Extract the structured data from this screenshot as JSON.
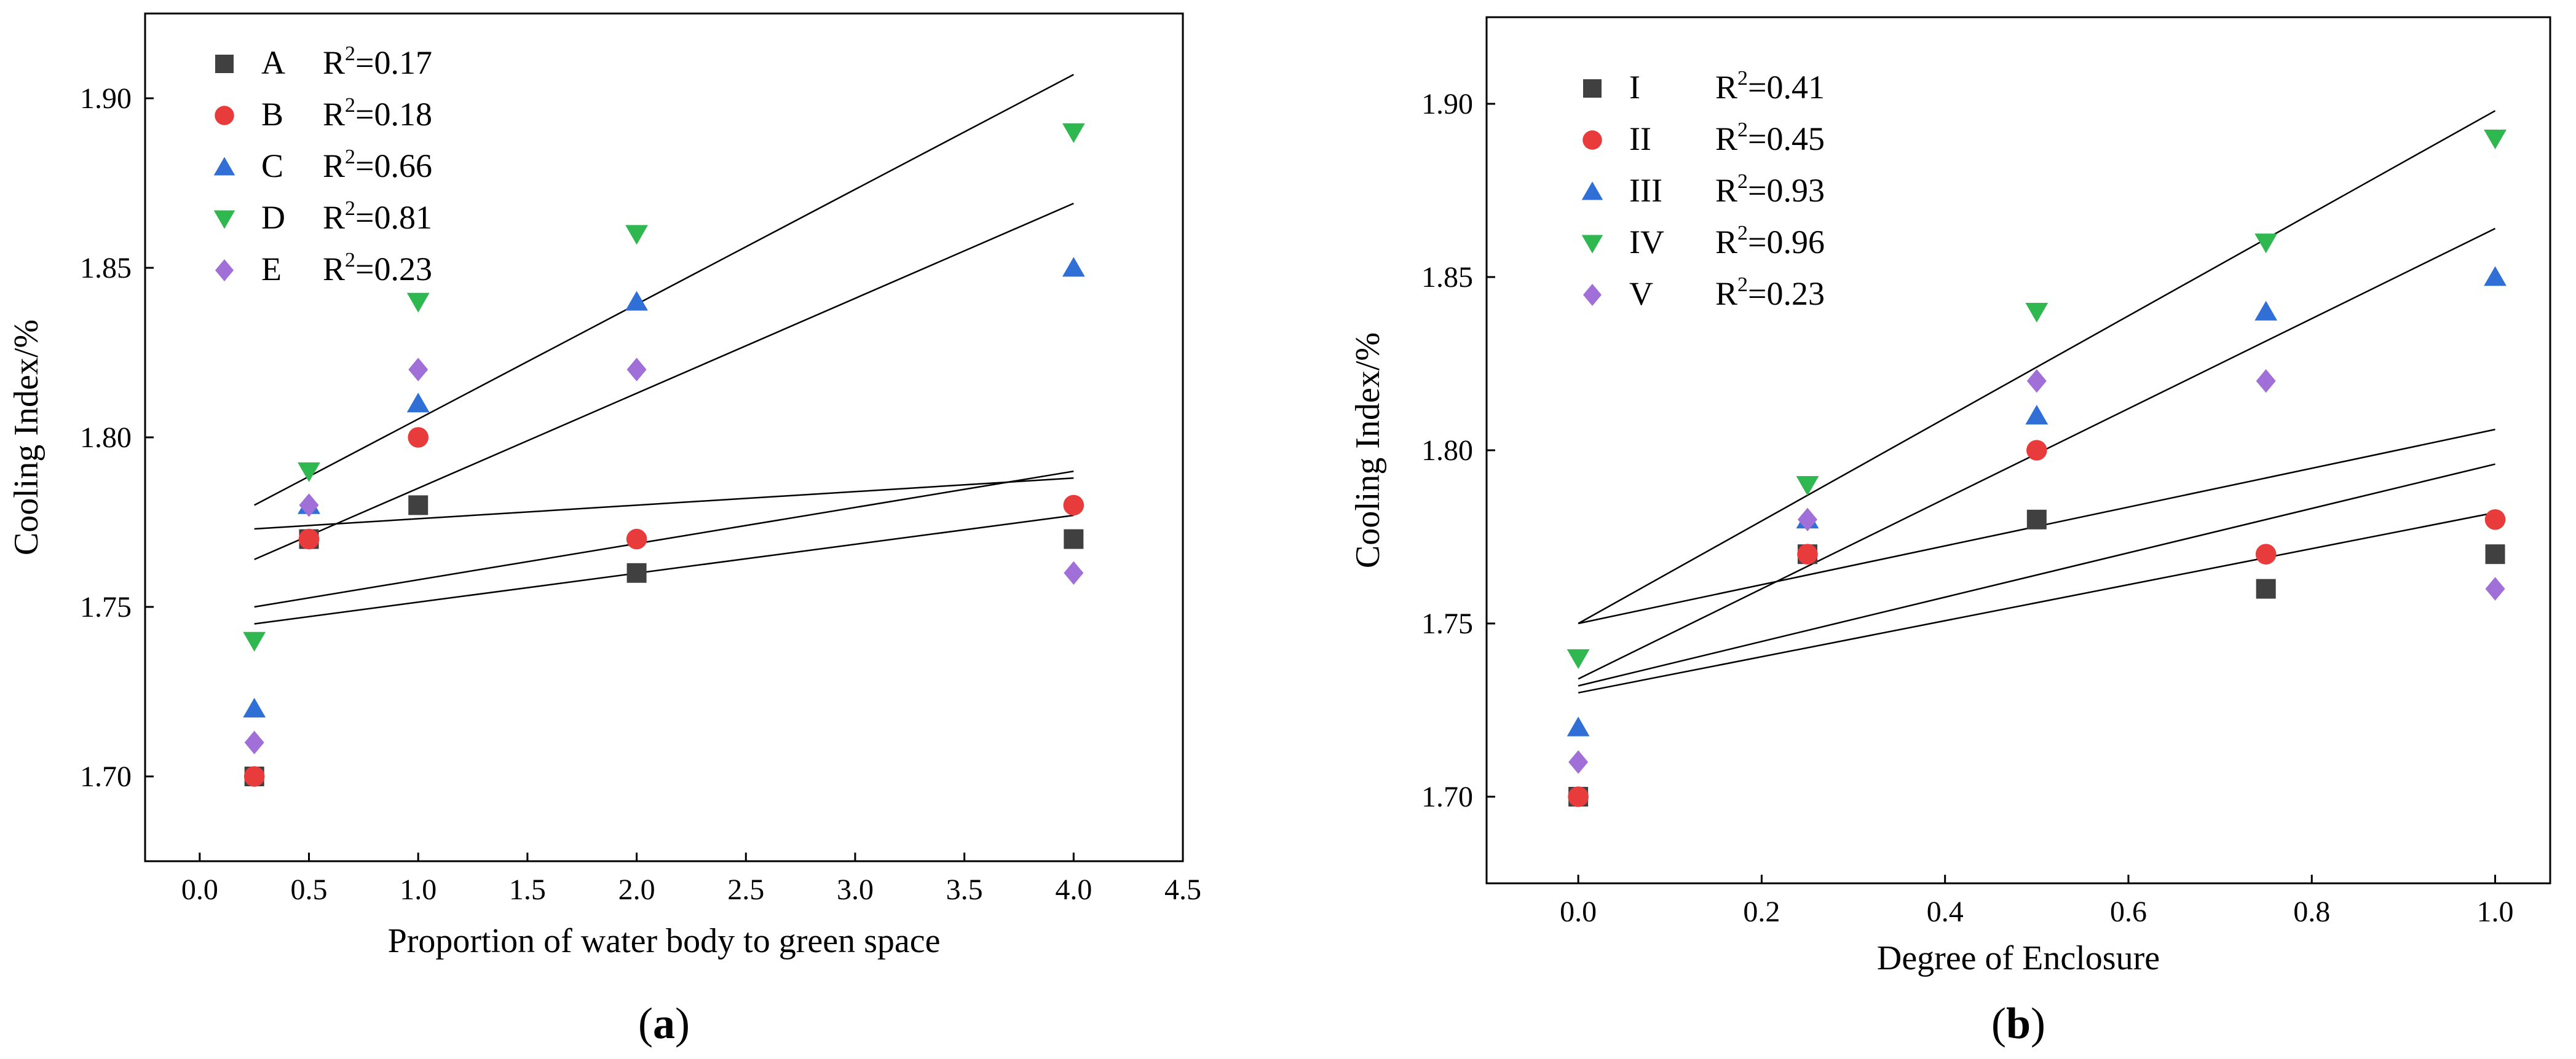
{
  "chart_data": [
    {
      "id": "a",
      "type": "scatter",
      "caption": "a",
      "xlabel": "Proportion of water body to green space",
      "ylabel": "Cooling Index/%",
      "xlim": [
        -0.25,
        4.5
      ],
      "ylim": [
        1.675,
        1.925
      ],
      "x_ticks": [
        0.0,
        0.5,
        1.0,
        1.5,
        2.0,
        2.5,
        3.0,
        3.5,
        4.0,
        4.5
      ],
      "x_tick_labels": [
        "0.0",
        "0.5",
        "1.0",
        "1.5",
        "2.0",
        "2.5",
        "3.0",
        "3.5",
        "4.0",
        "4.5"
      ],
      "y_ticks": [
        1.7,
        1.75,
        1.8,
        1.85,
        1.9
      ],
      "y_tick_labels": [
        "1.70",
        "1.75",
        "1.80",
        "1.85",
        "1.90"
      ],
      "series": [
        {
          "name": "A",
          "r2_label": "=0.17",
          "marker": "square",
          "color": "#404040",
          "x": [
            0.25,
            0.5,
            1.0,
            2.0,
            4.0
          ],
          "y": [
            1.7,
            1.77,
            1.78,
            1.76,
            1.77
          ],
          "fit": {
            "x": [
              0.25,
              4.0
            ],
            "y": [
              1.773,
              1.788
            ]
          }
        },
        {
          "name": "B",
          "r2_label": "=0.18",
          "marker": "circle",
          "color": "#e83c3c",
          "x": [
            0.25,
            0.5,
            1.0,
            2.0,
            4.0
          ],
          "y": [
            1.7,
            1.77,
            1.8,
            1.77,
            1.78
          ],
          "fit": {
            "x": [
              0.25,
              4.0
            ],
            "y": [
              1.745,
              1.777
            ]
          }
        },
        {
          "name": "C",
          "r2_label": "=0.66",
          "marker": "triangle-up",
          "color": "#2f6fd6",
          "x": [
            0.25,
            0.5,
            1.0,
            2.0,
            4.0
          ],
          "y": [
            1.72,
            1.78,
            1.81,
            1.84,
            1.85
          ],
          "fit": {
            "x": [
              0.25,
              4.0
            ],
            "y": [
              1.764,
              1.869
            ]
          }
        },
        {
          "name": "D",
          "r2_label": "=0.81",
          "marker": "triangle-down",
          "color": "#2fb84f",
          "x": [
            0.25,
            0.5,
            1.0,
            2.0,
            4.0
          ],
          "y": [
            1.74,
            1.79,
            1.84,
            1.86,
            1.89
          ],
          "fit": {
            "x": [
              0.25,
              4.0
            ],
            "y": [
              1.78,
              1.907
            ]
          }
        },
        {
          "name": "E",
          "r2_label": "=0.23",
          "marker": "diamond",
          "color": "#a070d8",
          "x": [
            0.25,
            0.5,
            1.0,
            2.0,
            4.0
          ],
          "y": [
            1.71,
            1.78,
            1.82,
            1.82,
            1.76
          ],
          "fit": {
            "x": [
              0.25,
              4.0
            ],
            "y": [
              1.75,
              1.79
            ]
          }
        }
      ]
    },
    {
      "id": "b",
      "type": "scatter",
      "caption": "b",
      "xlabel": "Degree of Enclosure",
      "ylabel": "Cooling Index/%",
      "xlim": [
        -0.1,
        1.06
      ],
      "ylim": [
        1.675,
        1.925
      ],
      "x_ticks": [
        0.0,
        0.2,
        0.4,
        0.6,
        0.8,
        1.0
      ],
      "x_tick_labels": [
        "0.0",
        "0.2",
        "0.4",
        "0.6",
        "0.8",
        "1.0"
      ],
      "y_ticks": [
        1.7,
        1.75,
        1.8,
        1.85,
        1.9
      ],
      "y_tick_labels": [
        "1.70",
        "1.75",
        "1.80",
        "1.85",
        "1.90"
      ],
      "series": [
        {
          "name": "I",
          "r2_label": "=0.41",
          "marker": "square",
          "color": "#404040",
          "x": [
            0.0,
            0.25,
            0.5,
            0.75,
            1.0
          ],
          "y": [
            1.7,
            1.77,
            1.78,
            1.76,
            1.77
          ],
          "fit": {
            "x": [
              0.0,
              1.0
            ],
            "y": [
              1.73,
              1.782
            ]
          }
        },
        {
          "name": "II",
          "r2_label": "=0.45",
          "marker": "circle",
          "color": "#e83c3c",
          "x": [
            0.0,
            0.25,
            0.5,
            0.75,
            1.0
          ],
          "y": [
            1.7,
            1.77,
            1.8,
            1.77,
            1.78
          ],
          "fit": {
            "x": [
              0.0,
              1.0
            ],
            "y": [
              1.732,
              1.796
            ]
          }
        },
        {
          "name": "III",
          "r2_label": "=0.93",
          "marker": "triangle-up",
          "color": "#2f6fd6",
          "x": [
            0.0,
            0.25,
            0.5,
            0.75,
            1.0
          ],
          "y": [
            1.72,
            1.78,
            1.81,
            1.84,
            1.85
          ],
          "fit": {
            "x": [
              0.0,
              1.0
            ],
            "y": [
              1.734,
              1.864
            ]
          }
        },
        {
          "name": "IV",
          "r2_label": "=0.96",
          "marker": "triangle-down",
          "color": "#2fb84f",
          "x": [
            0.0,
            0.25,
            0.5,
            0.75,
            1.0
          ],
          "y": [
            1.74,
            1.79,
            1.84,
            1.86,
            1.89
          ],
          "fit": {
            "x": [
              0.0,
              1.0
            ],
            "y": [
              1.75,
              1.898
            ]
          }
        },
        {
          "name": "V",
          "r2_label": "=0.23",
          "marker": "diamond",
          "color": "#a070d8",
          "x": [
            0.0,
            0.25,
            0.5,
            0.75,
            1.0
          ],
          "y": [
            1.71,
            1.78,
            1.82,
            1.82,
            1.76
          ],
          "fit": {
            "x": [
              0.0,
              1.0
            ],
            "y": [
              1.75,
              1.806
            ]
          }
        }
      ]
    }
  ]
}
